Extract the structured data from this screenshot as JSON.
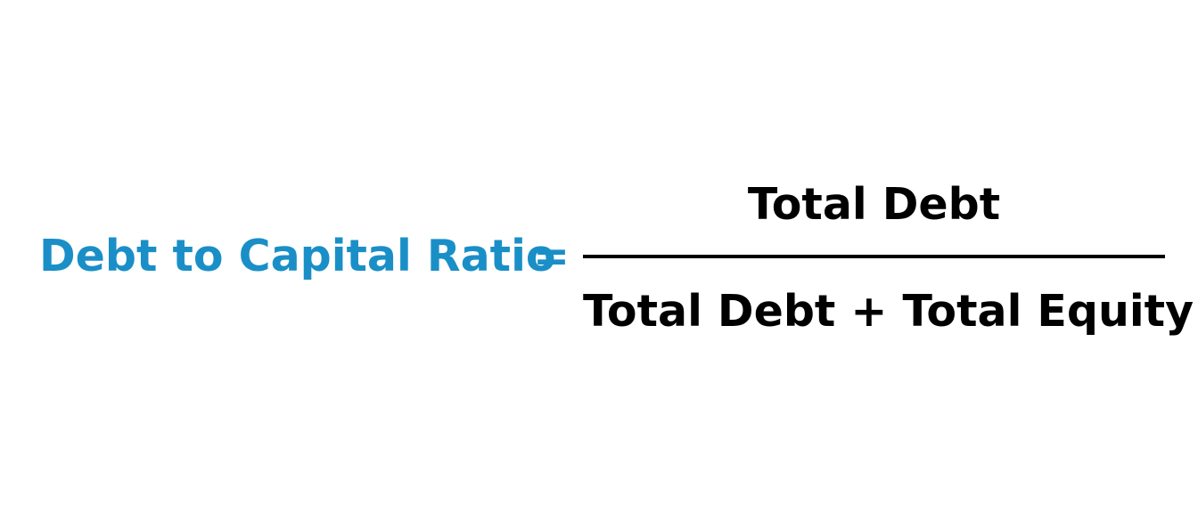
{
  "formula": {
    "lhs": "Debt to Capital Ratio",
    "equals": "=",
    "numerator": "Total Debt",
    "denominator": "Total Debt + Total Equity"
  },
  "colors": {
    "lhs": "#1a8fc7",
    "text": "#000000",
    "bar": "#000000"
  }
}
